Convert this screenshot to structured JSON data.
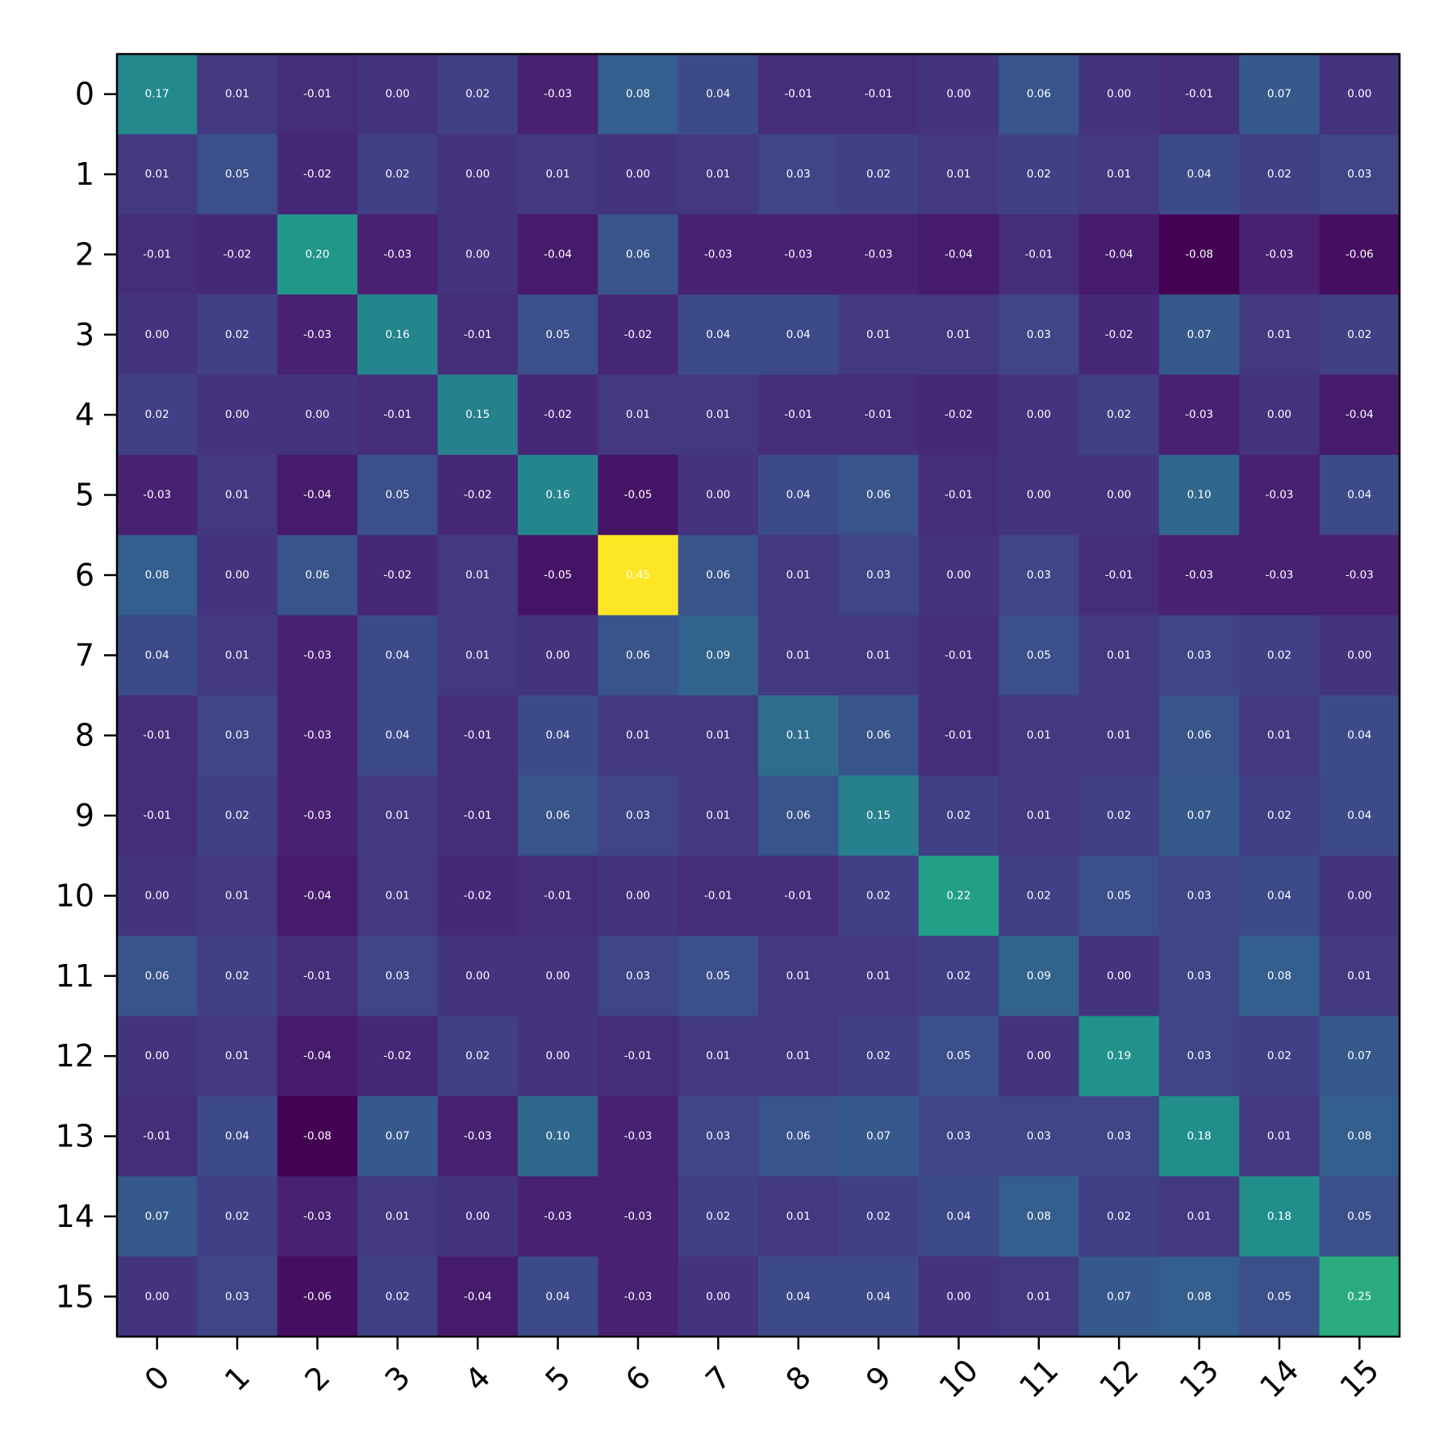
{
  "chart_data": {
    "type": "heatmap",
    "colormap": "viridis",
    "color_range": [
      -0.08,
      0.45
    ],
    "value_format": "2 decimals",
    "x_tick_labels": [
      "0",
      "1",
      "2",
      "3",
      "4",
      "5",
      "6",
      "7",
      "8",
      "9",
      "10",
      "11",
      "12",
      "13",
      "14",
      "15"
    ],
    "y_tick_labels": [
      "0",
      "1",
      "2",
      "3",
      "4",
      "5",
      "6",
      "7",
      "8",
      "9",
      "10",
      "11",
      "12",
      "13",
      "14",
      "15"
    ],
    "x_tick_rotation_deg": 45,
    "values": [
      [
        0.17,
        0.01,
        -0.01,
        -0.0,
        0.02,
        -0.03,
        0.08,
        0.04,
        -0.01,
        -0.01,
        -0.0,
        0.06,
        -0.0,
        -0.01,
        0.07,
        -0.0
      ],
      [
        0.01,
        0.05,
        -0.02,
        0.02,
        -0.0,
        0.01,
        -0.0,
        0.01,
        0.03,
        0.02,
        0.01,
        0.02,
        0.01,
        0.04,
        0.02,
        0.03
      ],
      [
        -0.01,
        -0.02,
        0.2,
        -0.03,
        -0.0,
        -0.04,
        0.06,
        -0.03,
        -0.03,
        -0.03,
        -0.04,
        -0.01,
        -0.04,
        -0.08,
        -0.03,
        -0.06
      ],
      [
        -0.0,
        0.02,
        -0.03,
        0.16,
        -0.01,
        0.05,
        -0.02,
        0.04,
        0.04,
        0.01,
        0.01,
        0.03,
        -0.02,
        0.07,
        0.01,
        0.02
      ],
      [
        0.02,
        -0.0,
        -0.0,
        -0.01,
        0.15,
        -0.02,
        0.01,
        0.01,
        -0.01,
        -0.01,
        -0.02,
        0.0,
        0.02,
        -0.03,
        -0.0,
        -0.04
      ],
      [
        -0.03,
        0.01,
        -0.04,
        0.05,
        -0.02,
        0.16,
        -0.05,
        -0.0,
        0.04,
        0.06,
        -0.01,
        0.0,
        0.0,
        0.1,
        -0.03,
        0.04
      ],
      [
        0.08,
        -0.0,
        0.06,
        -0.02,
        0.01,
        -0.05,
        0.45,
        0.06,
        0.01,
        0.03,
        -0.0,
        0.03,
        -0.01,
        -0.03,
        -0.03,
        -0.03
      ],
      [
        0.04,
        0.01,
        -0.03,
        0.04,
        0.01,
        -0.0,
        0.06,
        0.09,
        0.01,
        0.01,
        -0.01,
        0.05,
        0.01,
        0.03,
        0.02,
        0.0
      ],
      [
        -0.01,
        0.03,
        -0.03,
        0.04,
        -0.01,
        0.04,
        0.01,
        0.01,
        0.11,
        0.06,
        -0.01,
        0.01,
        0.01,
        0.06,
        0.01,
        0.04
      ],
      [
        -0.01,
        0.02,
        -0.03,
        0.01,
        -0.01,
        0.06,
        0.03,
        0.01,
        0.06,
        0.15,
        0.02,
        0.01,
        0.02,
        0.07,
        0.02,
        0.04
      ],
      [
        -0.0,
        0.01,
        -0.04,
        0.01,
        -0.02,
        -0.01,
        -0.0,
        -0.01,
        -0.01,
        0.02,
        0.22,
        0.02,
        0.05,
        0.03,
        0.04,
        -0.0
      ],
      [
        0.06,
        0.02,
        -0.01,
        0.03,
        0.0,
        0.0,
        0.03,
        0.05,
        0.01,
        0.01,
        0.02,
        0.09,
        0.0,
        0.03,
        0.08,
        0.01
      ],
      [
        -0.0,
        0.01,
        -0.04,
        -0.02,
        0.02,
        0.0,
        -0.01,
        0.01,
        0.01,
        0.02,
        0.05,
        0.0,
        0.19,
        0.03,
        0.02,
        0.07
      ],
      [
        -0.01,
        0.04,
        -0.08,
        0.07,
        -0.03,
        0.1,
        -0.03,
        0.03,
        0.06,
        0.07,
        0.03,
        0.03,
        0.03,
        0.18,
        0.01,
        0.08
      ],
      [
        0.07,
        0.02,
        -0.03,
        0.01,
        -0.0,
        -0.03,
        -0.03,
        0.02,
        0.01,
        0.02,
        0.04,
        0.08,
        0.02,
        0.01,
        0.18,
        0.05
      ],
      [
        -0.0,
        0.03,
        -0.06,
        0.02,
        -0.04,
        0.04,
        -0.03,
        0.0,
        0.04,
        0.04,
        -0.0,
        0.01,
        0.07,
        0.08,
        0.05,
        0.25
      ]
    ]
  }
}
